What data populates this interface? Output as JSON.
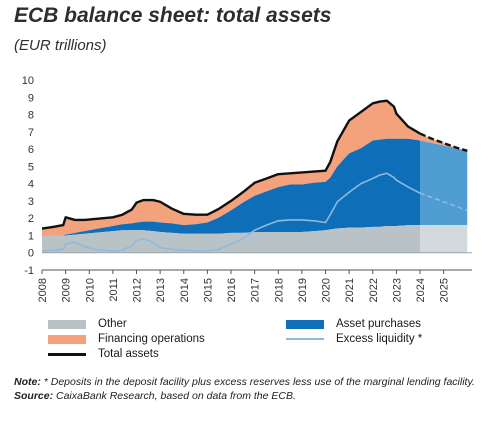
{
  "title": "ECB balance sheet: total assets",
  "subtitle": "(EUR trillions)",
  "legend": {
    "other": "Other",
    "financing": "Financing operations",
    "total": "Total assets",
    "asset_purchases": "Asset purchases",
    "excess_liquidity": "Excess liquidity *"
  },
  "notes": {
    "note_label": "Note:",
    "note_text": " * Deposits in the deposit facility plus excess reserves less use of the marginal lending facility.",
    "source_label": "Source:",
    "source_text": " CaixaBank Research, based on data from the ECB."
  },
  "colors": {
    "other": "#b9c3c7",
    "financing": "#f3a27c",
    "asset_purchases": "#0f6eb8",
    "excess_liquidity": "#8fb9de",
    "total": "#111111",
    "forecast_purchases": "#4f9dd1",
    "forecast_other": "#d3dadd"
  },
  "chart_data": {
    "type": "area",
    "ylim": [
      -1,
      10
    ],
    "yticks": [
      -1,
      0,
      1,
      2,
      3,
      4,
      5,
      6,
      7,
      8,
      9,
      10
    ],
    "xlabels": [
      "2008",
      "2009",
      "2010",
      "2011",
      "2012",
      "2013",
      "2014",
      "2015",
      "2016",
      "2017",
      "2018",
      "2019",
      "2020",
      "2021",
      "2022",
      "2023",
      "2024",
      "2025"
    ],
    "xlim": [
      2008,
      2026.2
    ],
    "forecast_start": 2024,
    "x": [
      2008.0,
      2008.5,
      2008.9,
      2009.0,
      2009.4,
      2009.8,
      2010.2,
      2010.6,
      2011.0,
      2011.4,
      2011.8,
      2012.0,
      2012.3,
      2012.7,
      2013.0,
      2013.5,
      2014.0,
      2014.5,
      2015.0,
      2015.5,
      2016.0,
      2016.5,
      2017.0,
      2017.5,
      2018.0,
      2018.5,
      2019.0,
      2019.5,
      2020.0,
      2020.2,
      2020.5,
      2021.0,
      2021.5,
      2022.0,
      2022.3,
      2022.6,
      2022.9,
      2023.0,
      2023.5,
      2024.0,
      2024.5,
      2025.0,
      2025.5,
      2026.0
    ],
    "other": [
      1.0,
      1.0,
      1.0,
      1.0,
      1.05,
      1.1,
      1.15,
      1.2,
      1.25,
      1.3,
      1.3,
      1.3,
      1.3,
      1.25,
      1.2,
      1.15,
      1.1,
      1.1,
      1.1,
      1.1,
      1.15,
      1.15,
      1.2,
      1.2,
      1.2,
      1.2,
      1.2,
      1.25,
      1.3,
      1.35,
      1.4,
      1.45,
      1.45,
      1.5,
      1.5,
      1.55,
      1.55,
      1.55,
      1.6,
      1.6,
      1.6,
      1.6,
      1.6,
      1.6
    ],
    "financing": [
      0.35,
      0.45,
      0.6,
      0.9,
      0.75,
      0.6,
      0.55,
      0.55,
      0.5,
      0.55,
      0.8,
      1.0,
      1.2,
      1.3,
      1.2,
      0.9,
      0.65,
      0.55,
      0.45,
      0.5,
      0.55,
      0.6,
      0.75,
      0.75,
      0.75,
      0.7,
      0.7,
      0.65,
      0.65,
      0.9,
      1.45,
      1.9,
      2.1,
      2.15,
      2.15,
      2.1,
      1.85,
      1.45,
      0.7,
      0.4,
      0.25,
      0.15,
      0.05,
      0.02
    ],
    "asset_purchases": [
      0.0,
      0.0,
      0.0,
      0.05,
      0.1,
      0.15,
      0.2,
      0.25,
      0.3,
      0.35,
      0.4,
      0.45,
      0.5,
      0.55,
      0.55,
      0.55,
      0.5,
      0.55,
      0.65,
      0.95,
      1.3,
      1.75,
      2.1,
      2.35,
      2.6,
      2.75,
      2.75,
      2.8,
      2.8,
      3.0,
      3.6,
      4.3,
      4.6,
      5.0,
      5.05,
      5.05,
      5.05,
      5.05,
      5.0,
      4.9,
      4.75,
      4.6,
      4.45,
      4.3
    ],
    "total": [
      1.4,
      1.5,
      1.6,
      2.05,
      1.9,
      1.9,
      1.95,
      2.0,
      2.05,
      2.2,
      2.5,
      2.9,
      3.05,
      3.05,
      2.95,
      2.55,
      2.25,
      2.2,
      2.2,
      2.55,
      3.0,
      3.5,
      4.05,
      4.3,
      4.55,
      4.6,
      4.65,
      4.7,
      4.75,
      5.25,
      6.45,
      7.65,
      8.15,
      8.65,
      8.75,
      8.8,
      8.45,
      8.05,
      7.3,
      6.9,
      6.6,
      6.35,
      6.1,
      5.9
    ],
    "excess_liquidity": [
      0.1,
      0.15,
      0.2,
      0.5,
      0.6,
      0.35,
      0.2,
      0.15,
      0.1,
      0.15,
      0.4,
      0.7,
      0.8,
      0.6,
      0.3,
      0.2,
      0.15,
      0.1,
      0.1,
      0.2,
      0.5,
      0.8,
      1.3,
      1.6,
      1.85,
      1.9,
      1.9,
      1.85,
      1.75,
      2.2,
      2.95,
      3.5,
      4.0,
      4.3,
      4.5,
      4.6,
      4.35,
      4.2,
      3.8,
      3.45,
      3.2,
      2.95,
      2.7,
      2.45
    ]
  }
}
